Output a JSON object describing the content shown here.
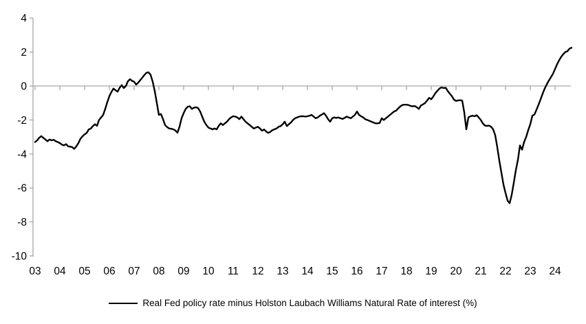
{
  "chart_data": {
    "type": "line",
    "title": "",
    "xlabel": "",
    "ylabel": "",
    "ylim": [
      -10,
      4
    ],
    "y_ticks": [
      4,
      2,
      0,
      -2,
      -4,
      -6,
      -8,
      -10
    ],
    "x_tick_labels": [
      "03",
      "04",
      "05",
      "06",
      "07",
      "08",
      "09",
      "10",
      "11",
      "12",
      "13",
      "14",
      "15",
      "16",
      "17",
      "18",
      "19",
      "20",
      "21",
      "22",
      "23",
      "24"
    ],
    "grid": "zero-baseline-only",
    "legend_position": "bottom-center",
    "axis_color": "#a6a6a6",
    "text_color": "#000000",
    "series": [
      {
        "name": "Real Fed policy rate minus Holston Laubach Williams Natural Rate of interest (%)",
        "color": "#000000",
        "start_year": 2003,
        "points_per_year": 12,
        "values": [
          -3.3,
          -3.2,
          -3.05,
          -2.95,
          -3.05,
          -3.15,
          -3.25,
          -3.15,
          -3.2,
          -3.16,
          -3.25,
          -3.3,
          -3.36,
          -3.45,
          -3.5,
          -3.42,
          -3.55,
          -3.57,
          -3.6,
          -3.7,
          -3.55,
          -3.36,
          -3.1,
          -2.96,
          -2.85,
          -2.76,
          -2.56,
          -2.5,
          -2.36,
          -2.25,
          -2.35,
          -2.0,
          -1.85,
          -1.7,
          -1.35,
          -0.95,
          -0.6,
          -0.35,
          -0.15,
          -0.25,
          -0.33,
          -0.1,
          0.05,
          -0.12,
          0.0,
          0.28,
          0.4,
          0.3,
          0.25,
          0.08,
          0.2,
          0.35,
          0.5,
          0.65,
          0.78,
          0.8,
          0.65,
          0.25,
          -0.3,
          -1.0,
          -1.7,
          -1.65,
          -1.95,
          -2.3,
          -2.42,
          -2.5,
          -2.52,
          -2.55,
          -2.62,
          -2.75,
          -2.4,
          -1.9,
          -1.6,
          -1.35,
          -1.22,
          -1.2,
          -1.35,
          -1.28,
          -1.25,
          -1.3,
          -1.5,
          -1.8,
          -2.1,
          -2.3,
          -2.45,
          -2.5,
          -2.55,
          -2.5,
          -2.55,
          -2.35,
          -2.2,
          -2.3,
          -2.2,
          -2.1,
          -1.95,
          -1.85,
          -1.78,
          -1.8,
          -1.85,
          -1.95,
          -1.8,
          -1.95,
          -2.1,
          -2.2,
          -2.3,
          -2.4,
          -2.5,
          -2.45,
          -2.4,
          -2.5,
          -2.63,
          -2.56,
          -2.68,
          -2.76,
          -2.7,
          -2.6,
          -2.55,
          -2.5,
          -2.4,
          -2.36,
          -2.25,
          -2.1,
          -2.36,
          -2.25,
          -2.15,
          -2.0,
          -1.9,
          -1.85,
          -1.8,
          -1.78,
          -1.78,
          -1.8,
          -1.78,
          -1.75,
          -1.7,
          -1.8,
          -1.9,
          -1.85,
          -1.75,
          -1.68,
          -1.6,
          -1.75,
          -1.95,
          -2.1,
          -1.9,
          -1.85,
          -1.88,
          -1.85,
          -1.9,
          -1.94,
          -1.88,
          -1.8,
          -1.85,
          -1.9,
          -1.8,
          -1.7,
          -1.5,
          -1.7,
          -1.78,
          -1.85,
          -1.95,
          -2.0,
          -2.05,
          -2.1,
          -2.15,
          -2.2,
          -2.2,
          -2.18,
          -1.9,
          -2.0,
          -1.9,
          -1.8,
          -1.7,
          -1.6,
          -1.5,
          -1.45,
          -1.32,
          -1.2,
          -1.12,
          -1.1,
          -1.1,
          -1.12,
          -1.18,
          -1.2,
          -1.18,
          -1.25,
          -1.35,
          -1.15,
          -1.08,
          -1.0,
          -0.85,
          -0.7,
          -0.78,
          -0.62,
          -0.42,
          -0.28,
          -0.15,
          -0.08,
          -0.12,
          -0.1,
          -0.3,
          -0.45,
          -0.6,
          -0.8,
          -0.88,
          -0.85,
          -0.84,
          -0.86,
          -1.55,
          -2.55,
          -1.85,
          -1.78,
          -1.75,
          -1.78,
          -1.72,
          -1.85,
          -2.0,
          -2.2,
          -2.33,
          -2.35,
          -2.33,
          -2.4,
          -2.55,
          -2.9,
          -3.6,
          -4.4,
          -5.1,
          -5.8,
          -6.3,
          -6.75,
          -6.9,
          -6.4,
          -5.7,
          -4.95,
          -4.35,
          -3.5,
          -3.75,
          -3.3,
          -3.0,
          -2.6,
          -2.25,
          -1.75,
          -1.68,
          -1.4,
          -1.1,
          -0.78,
          -0.45,
          -0.15,
          0.1,
          0.32,
          0.52,
          0.72,
          1.0,
          1.28,
          1.52,
          1.72,
          1.88,
          2.0,
          2.05,
          2.2,
          2.25
        ]
      }
    ]
  },
  "legend": {
    "label": "Real Fed policy rate minus Holston Laubach Williams Natural Rate of interest (%)"
  }
}
